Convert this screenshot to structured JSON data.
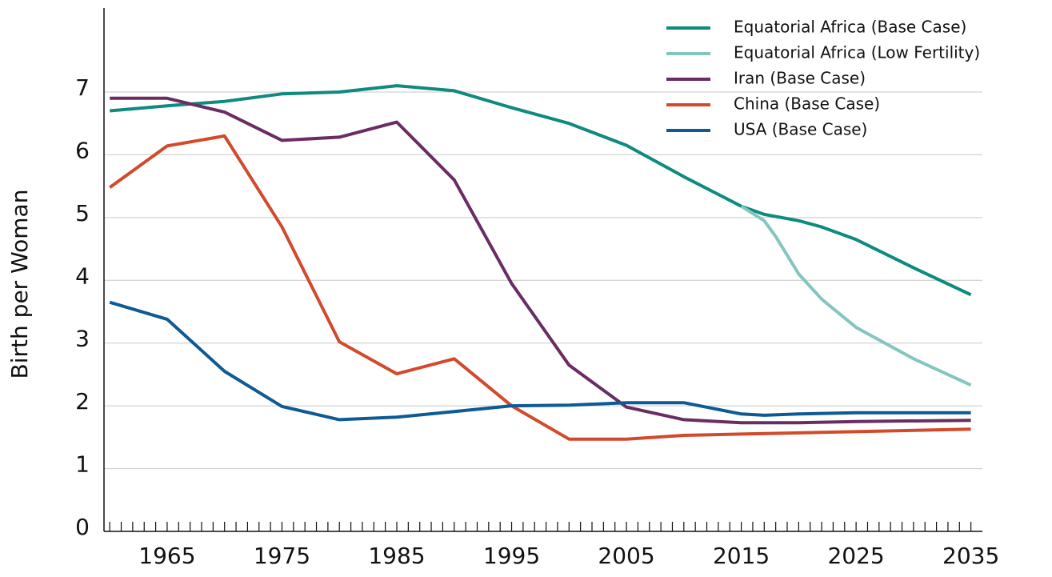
{
  "chart_data": {
    "type": "line",
    "y_label": "Birth per Woman",
    "xlim": [
      1959.5,
      2036
    ],
    "xticks": [
      1965,
      1975,
      1985,
      1995,
      2005,
      2015,
      2025,
      2035
    ],
    "xticks_minor": [
      1960,
      1961,
      1962,
      1963,
      1964,
      1965,
      1966,
      1967,
      1968,
      1969,
      1970,
      1971,
      1972,
      1973,
      1974,
      1975,
      1976,
      1977,
      1978,
      1979,
      1980,
      1981,
      1982,
      1983,
      1984,
      1985,
      1986,
      1987,
      1988,
      1989,
      1990,
      1991,
      1992,
      1993,
      1994,
      1995,
      1996,
      1997,
      1998,
      1999,
      2000,
      2001,
      2002,
      2003,
      2004,
      2005,
      2006,
      2007,
      2008,
      2009,
      2010,
      2011,
      2012,
      2013,
      2014,
      2015,
      2016,
      2017,
      2018,
      2019,
      2020,
      2021,
      2022,
      2023,
      2024,
      2025,
      2026,
      2027,
      2028,
      2029,
      2030,
      2031,
      2032,
      2033,
      2034,
      2035
    ],
    "ylim": [
      0,
      8.3
    ],
    "yticks": [
      0,
      1,
      2,
      3,
      4,
      5,
      6,
      7
    ],
    "grid": true,
    "legend": "upper right",
    "series": [
      {
        "name": "Equatorial Africa (Base Case)",
        "color": "#0f8a7e",
        "x": [
          1960,
          1965,
          1970,
          1975,
          1980,
          1985,
          1990,
          1995,
          2000,
          2005,
          2010,
          2015,
          2017,
          2020,
          2022,
          2025,
          2030,
          2035
        ],
        "values": [
          6.7,
          6.78,
          6.85,
          6.97,
          7.0,
          7.1,
          7.02,
          6.75,
          6.5,
          6.15,
          5.65,
          5.18,
          5.05,
          4.95,
          4.85,
          4.65,
          4.2,
          3.77
        ]
      },
      {
        "name": "Equatorial Africa (Low Fertility)",
        "color": "#85c5bd",
        "x": [
          2015,
          2017,
          2018,
          2020,
          2022,
          2025,
          2030,
          2035
        ],
        "values": [
          5.18,
          4.95,
          4.7,
          4.1,
          3.7,
          3.25,
          2.75,
          2.33
        ]
      },
      {
        "name": "Iran (Base Case)",
        "color": "#6a2d63",
        "x": [
          1960,
          1965,
          1970,
          1975,
          1980,
          1985,
          1990,
          1995,
          2000,
          2005,
          2010,
          2015,
          2020,
          2025,
          2035
        ],
        "values": [
          6.9,
          6.9,
          6.68,
          6.23,
          6.28,
          6.52,
          5.6,
          3.95,
          2.65,
          1.98,
          1.78,
          1.73,
          1.73,
          1.75,
          1.77
        ]
      },
      {
        "name": "China (Base Case)",
        "color": "#d24a2c",
        "x": [
          1960,
          1965,
          1970,
          1975,
          1980,
          1985,
          1990,
          1995,
          2000,
          2005,
          2010,
          2015,
          2035
        ],
        "values": [
          5.48,
          6.14,
          6.3,
          4.85,
          3.02,
          2.51,
          2.75,
          2.0,
          1.47,
          1.47,
          1.53,
          1.55,
          1.63
        ]
      },
      {
        "name": "USA (Base Case)",
        "color": "#0e5a94",
        "x": [
          1960,
          1965,
          1970,
          1975,
          1980,
          1985,
          1990,
          1995,
          2000,
          2005,
          2010,
          2015,
          2017,
          2020,
          2025,
          2035
        ],
        "values": [
          3.65,
          3.38,
          2.55,
          1.99,
          1.78,
          1.82,
          1.91,
          2.0,
          2.01,
          2.05,
          2.05,
          1.87,
          1.85,
          1.87,
          1.89,
          1.89
        ]
      }
    ]
  }
}
